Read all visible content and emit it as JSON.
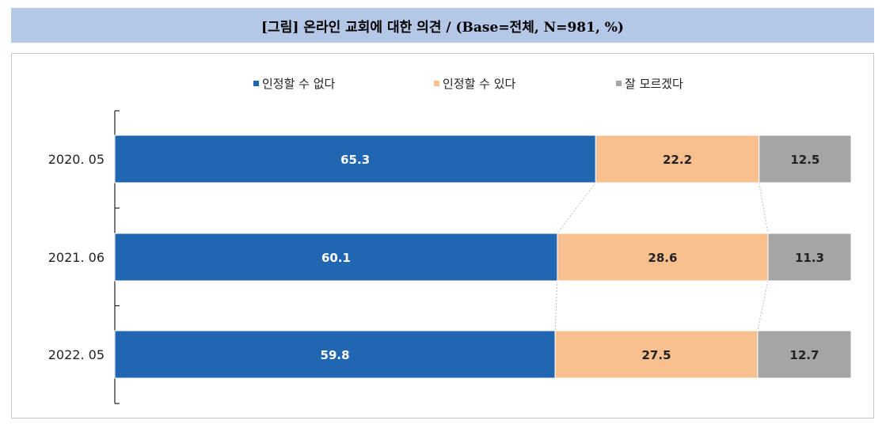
{
  "header": {
    "title": "[그림] 온라인 교회에 대한 의견 / (Base=전체, N=981, %)"
  },
  "chart_data": {
    "type": "bar",
    "stacked": true,
    "orientation": "horizontal",
    "percent_stacked": true,
    "categories": [
      "2020. 05",
      "2021. 06",
      "2022. 05"
    ],
    "series": [
      {
        "name": "인정할 수 없다",
        "values": [
          65.3,
          60.1,
          59.8
        ],
        "color": "#2166b1",
        "label_color": "#ffffff"
      },
      {
        "name": "인정할 수 있다",
        "values": [
          22.2,
          28.6,
          27.5
        ],
        "color": "#f8bf8f",
        "label_color": "#222222"
      },
      {
        "name": "잘 모르겠다",
        "values": [
          12.5,
          11.3,
          12.7
        ],
        "color": "#a5a5a5",
        "label_color": "#222222"
      }
    ],
    "xlim": [
      0,
      100
    ],
    "legend_position": "top",
    "series_lines": true,
    "grid": false
  }
}
